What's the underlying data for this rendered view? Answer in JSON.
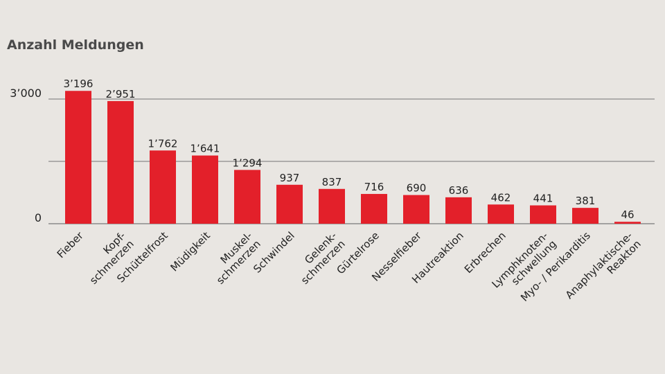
{
  "chart_data": {
    "type": "bar",
    "ylabel": "Anzahl Meldungen",
    "categories": [
      "Fieber",
      "Kopf-\nschmerzen",
      "Schüttelfrost",
      "Müdigkeit",
      "Muskel-\nschmerzen",
      "Schwindel",
      "Gelenk-\nschmerzen",
      "Gürtelrose",
      "Nesselfieber",
      "Hautreaktion",
      "Erbrechen",
      "Lymphknoten-\nschwellung",
      "Myo- / Perikarditis",
      "Anaphylaktische-\nReakton"
    ],
    "values": [
      3196,
      2951,
      1762,
      1641,
      1294,
      937,
      837,
      716,
      690,
      636,
      462,
      441,
      381,
      46
    ],
    "value_labels": [
      "3’196",
      "2’951",
      "1’762",
      "1’641",
      "1’294",
      "937",
      "837",
      "716",
      "690",
      "636",
      "462",
      "441",
      "381",
      "46"
    ],
    "yticks": [
      0,
      1500,
      3000
    ],
    "ytick_labels": [
      "0",
      "",
      "3’000"
    ],
    "ylim": [
      0,
      3000
    ],
    "grid": true,
    "colors": {
      "bar": "#e3202a",
      "grid": "#8a8a8a",
      "background": "#e9e6e2"
    }
  }
}
